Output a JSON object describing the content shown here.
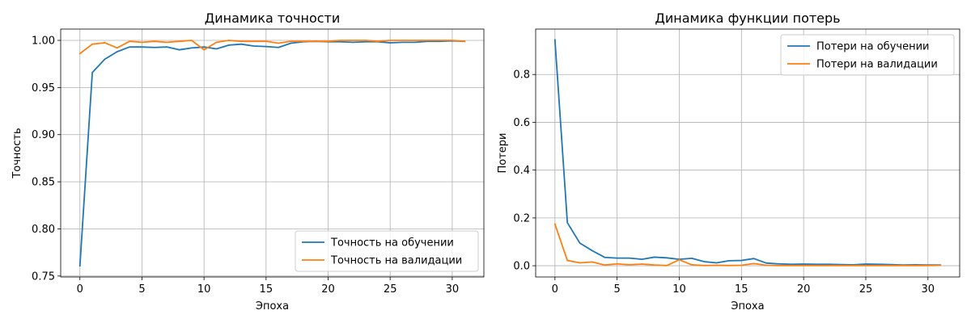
{
  "chart_data": [
    {
      "type": "line",
      "title": "Динамика точности",
      "xlabel": "Эпоха",
      "ylabel": "Точность",
      "xlim": [
        -1.55,
        32.55
      ],
      "ylim": [
        0.749,
        1.012
      ],
      "xticks": [
        0,
        5,
        10,
        15,
        20,
        25,
        30
      ],
      "yticks": [
        0.75,
        0.8,
        0.85,
        0.9,
        0.95,
        1.0
      ],
      "ytick_labels": [
        "0.75",
        "0.80",
        "0.85",
        "0.90",
        "0.95",
        "1.00"
      ],
      "grid": true,
      "legend_position": "lower-right",
      "x": [
        0,
        1,
        2,
        3,
        4,
        5,
        6,
        7,
        8,
        9,
        10,
        11,
        12,
        13,
        14,
        15,
        16,
        17,
        18,
        19,
        20,
        21,
        22,
        23,
        24,
        25,
        26,
        27,
        28,
        29,
        30,
        31
      ],
      "series": [
        {
          "name": "Точность на обучении",
          "color": "#1f77b4",
          "values": [
            0.761,
            0.966,
            0.98,
            0.988,
            0.993,
            0.993,
            0.9925,
            0.993,
            0.99,
            0.992,
            0.993,
            0.991,
            0.995,
            0.996,
            0.994,
            0.9935,
            0.9925,
            0.997,
            0.9985,
            0.999,
            0.9985,
            0.9985,
            0.998,
            0.9985,
            0.9985,
            0.9975,
            0.998,
            0.998,
            0.999,
            0.999,
            0.9995,
            0.999
          ]
        },
        {
          "name": "Точность на валидации",
          "color": "#ff7f0e",
          "values": [
            0.986,
            0.996,
            0.9975,
            0.992,
            0.999,
            0.998,
            0.999,
            0.998,
            0.999,
            1.0,
            0.99,
            0.998,
            1.0,
            0.999,
            0.999,
            0.999,
            0.997,
            0.999,
            0.999,
            0.999,
            0.999,
            1.0,
            1.0,
            1.0,
            0.999,
            1.0,
            1.0,
            1.0,
            1.0,
            1.0,
            1.0,
            0.999
          ]
        }
      ]
    },
    {
      "type": "line",
      "title": "Динамика функции потерь",
      "xlabel": "Эпоха",
      "ylabel": "Потери",
      "xlim": [
        -1.55,
        32.55
      ],
      "ylim": [
        -0.047,
        0.99
      ],
      "xticks": [
        0,
        5,
        10,
        15,
        20,
        25,
        30
      ],
      "yticks": [
        0.0,
        0.2,
        0.4,
        0.6,
        0.8
      ],
      "ytick_labels": [
        "0.0",
        "0.2",
        "0.4",
        "0.6",
        "0.8"
      ],
      "grid": true,
      "legend_position": "upper-right",
      "x": [
        0,
        1,
        2,
        3,
        4,
        5,
        6,
        7,
        8,
        9,
        10,
        11,
        12,
        13,
        14,
        15,
        16,
        17,
        18,
        19,
        20,
        21,
        22,
        23,
        24,
        25,
        26,
        27,
        28,
        29,
        30,
        31
      ],
      "series": [
        {
          "name": "Потери на обучении",
          "color": "#1f77b4",
          "values": [
            0.945,
            0.18,
            0.095,
            0.063,
            0.035,
            0.032,
            0.032,
            0.027,
            0.036,
            0.033,
            0.027,
            0.031,
            0.017,
            0.012,
            0.021,
            0.022,
            0.03,
            0.011,
            0.008,
            0.006,
            0.007,
            0.006,
            0.006,
            0.005,
            0.004,
            0.007,
            0.006,
            0.005,
            0.003,
            0.004,
            0.003,
            0.003
          ]
        },
        {
          "name": "Потери на валидации",
          "color": "#ff7f0e",
          "values": [
            0.174,
            0.022,
            0.012,
            0.016,
            0.003,
            0.008,
            0.004,
            0.007,
            0.003,
            0.001,
            0.025,
            0.004,
            0.001,
            0.002,
            0.001,
            0.002,
            0.009,
            0.002,
            0.001,
            0.001,
            0.001,
            0.001,
            0.001,
            0.001,
            0.001,
            0.001,
            0.001,
            0.001,
            0.001,
            0.001,
            0.001,
            0.002
          ]
        }
      ]
    }
  ]
}
